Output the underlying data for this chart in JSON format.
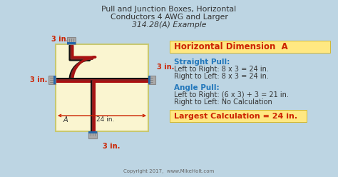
{
  "title_line1": "Pull and Junction Boxes, Horizontal",
  "title_line2": "Conductors 4 AWG and Larger",
  "title_line3": "314.28(A) Example",
  "bg_color": "#bdd5e3",
  "box_fill": "#faf5d0",
  "box_border": "#c8c870",
  "header_label": "Horizontal Dimension  A",
  "header_bg": "#ffe882",
  "straight_pull_label": "Straight Pull:",
  "straight_pull_line1": "Left to Right: 8 x 3 = 24 in.",
  "straight_pull_line2": "Right to Left: 8 x 3 = 24 in.",
  "angle_pull_label": "Angle Pull:",
  "angle_pull_line1": "Left to Right: (6 x 3) + 3 = 21 in.",
  "angle_pull_line2": "Right to Left: No Calculation",
  "largest_label": "Largest Calculation = 24 in.",
  "largest_bg": "#ffe882",
  "dim_label": "24 in.",
  "dim_a": "A",
  "measure_3in_top": "3 in.",
  "measure_3in_left": "3 in.",
  "measure_3in_right": "3 in.",
  "measure_3in_bottom": "3 in.",
  "copyright": "Copyright 2017,  www.MikeHolt.com",
  "label_color": "#cc2200",
  "pull_label_color": "#2277bb",
  "dark_text": "#333333",
  "wire_red": "#aa1111",
  "wire_blue": "#1155aa",
  "wire_black": "#111111",
  "connector_blue": "#2266aa",
  "connector_gray": "#aaaaaa",
  "connector_border": "#888888"
}
